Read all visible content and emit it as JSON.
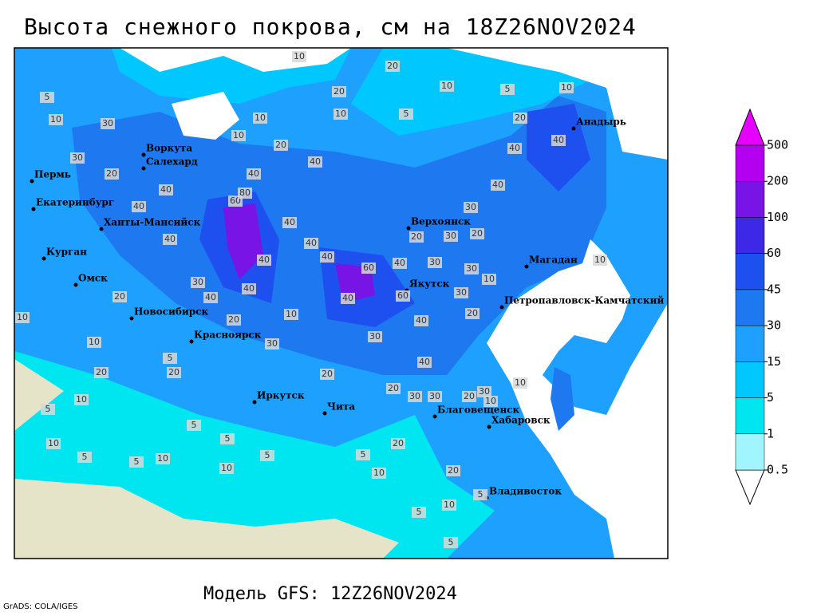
{
  "header": {
    "title": "Высота снежного покрова, см на 18Z26NOV2024"
  },
  "map": {
    "cities": [
      "Воркута",
      "Салехард",
      "Пермь",
      "Екатеринбург",
      "Ханты-Мансийск",
      "Курган",
      "Омск",
      "Новосибирск",
      "Красноярск",
      "Иркутск",
      "Чита",
      "Верхоянск",
      "Якутск",
      "Благовещенск",
      "Хабаровск",
      "Владивосток",
      "Магадан",
      "Петропавловск-Камчатский",
      "Анадырь"
    ],
    "contour_labels": [
      10,
      20,
      10,
      5,
      20,
      10,
      10,
      5,
      5,
      10,
      30,
      10,
      20,
      30,
      20,
      40,
      40,
      40,
      60,
      80,
      40,
      40,
      40,
      40,
      40,
      30,
      20,
      30,
      20,
      40,
      40,
      40,
      40,
      60,
      40,
      30,
      30,
      10,
      30,
      40,
      40,
      40,
      60,
      30,
      20,
      10,
      10,
      40,
      20,
      20,
      30,
      10,
      30,
      5,
      20,
      20,
      40,
      20,
      20,
      30,
      30,
      20,
      30,
      10,
      10,
      10,
      5,
      5,
      5,
      10,
      20,
      5,
      5,
      10,
      5,
      5,
      10,
      10,
      20,
      5,
      10,
      5,
      5,
      10,
      20,
      10
    ]
  },
  "legend": {
    "levels": [
      0.5,
      1,
      5,
      15,
      30,
      45,
      60,
      100,
      200,
      500
    ],
    "colors": [
      "#ffffff",
      "#a0f5ff",
      "#00e6f0",
      "#00c8ff",
      "#1ea0ff",
      "#1e78f0",
      "#1e50f0",
      "#3c28e6",
      "#7814e6",
      "#b400f0",
      "#e600ff"
    ]
  },
  "footer": {
    "model": "Модель GFS: 12Z26NOV2024",
    "credit": "GrADS: COLA/IGES"
  }
}
